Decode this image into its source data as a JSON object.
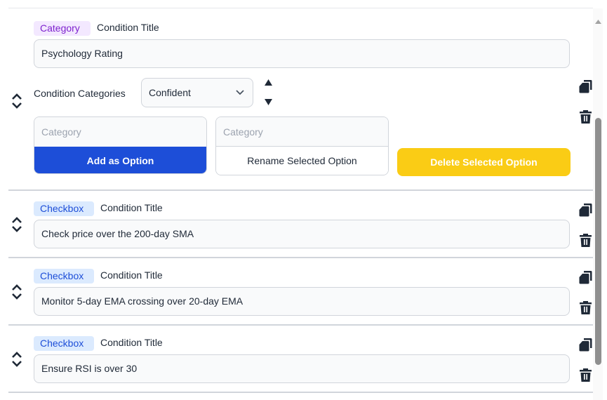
{
  "conditions": [
    {
      "type_tag": "Category",
      "title_label": "Condition Title",
      "value": "Psychology Rating",
      "categories_label": "Condition Categories",
      "selected_category": "Confident",
      "add_placeholder": "Category",
      "rename_placeholder": "Category",
      "add_button": "Add as Option",
      "rename_button": "Rename Selected Option",
      "delete_button": "Delete Selected Option"
    },
    {
      "type_tag": "Checkbox",
      "title_label": "Condition Title",
      "value": "Check price over the 200-day SMA"
    },
    {
      "type_tag": "Checkbox",
      "title_label": "Condition Title",
      "value": "Monitor 5-day EMA crossing over 20-day EMA"
    },
    {
      "type_tag": "Checkbox",
      "title_label": "Condition Title",
      "value": "Ensure RSI is over 30"
    }
  ],
  "colors": {
    "primary": "#1d4ed8",
    "warning": "#facc15",
    "category_tag": "#f3e8ff",
    "checkbox_tag": "#dbeafe"
  }
}
